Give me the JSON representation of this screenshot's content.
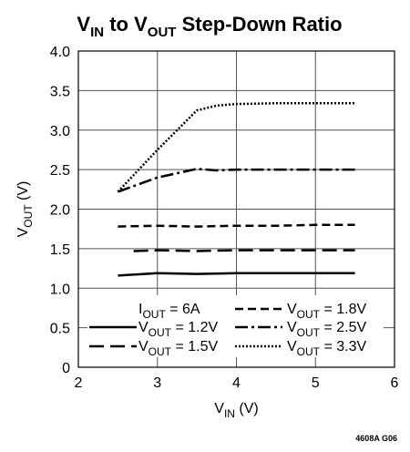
{
  "chart_data": {
    "type": "line",
    "title": {
      "main_a": "V",
      "sub_a": "IN",
      "main_b": " to V",
      "sub_b": "OUT",
      "main_c": " Step-Down Ratio"
    },
    "xlabel": {
      "main": "V",
      "sub": "IN",
      "suffix": " (V)"
    },
    "ylabel": {
      "main": "V",
      "sub": "OUT",
      "suffix": " (V)"
    },
    "xlim": [
      2,
      6
    ],
    "ylim": [
      0,
      4.0
    ],
    "xticks": [
      "2",
      "3",
      "4",
      "5",
      "6"
    ],
    "yticks": [
      "0",
      "0.5",
      "1.0",
      "1.5",
      "2.0",
      "2.5",
      "3.0",
      "3.5",
      "4.0"
    ],
    "grid": true,
    "legend_position": "bottom",
    "legend_header": {
      "main": "I",
      "sub": "OUT",
      "suffix": " = 6A"
    },
    "series": [
      {
        "name": "V_OUT = 1.2V",
        "label": {
          "main": "V",
          "sub": "OUT",
          "suffix": " = 1.2V"
        },
        "dash": "solid",
        "x": [
          2.5,
          3.0,
          3.5,
          4.0,
          4.5,
          5.0,
          5.5
        ],
        "y": [
          1.16,
          1.19,
          1.18,
          1.19,
          1.19,
          1.19,
          1.19
        ]
      },
      {
        "name": "V_OUT = 1.5V",
        "label": {
          "main": "V",
          "sub": "OUT",
          "suffix": " = 1.5V"
        },
        "dash": "longdash",
        "x": [
          2.7,
          3.0,
          3.5,
          4.0,
          4.5,
          5.0,
          5.5
        ],
        "y": [
          1.47,
          1.48,
          1.47,
          1.48,
          1.48,
          1.48,
          1.48
        ]
      },
      {
        "name": "V_OUT = 1.8V",
        "label": {
          "main": "V",
          "sub": "OUT",
          "suffix": " = 1.8V"
        },
        "dash": "dash",
        "x": [
          2.5,
          3.0,
          3.5,
          4.0,
          4.5,
          5.0,
          5.5
        ],
        "y": [
          1.78,
          1.79,
          1.78,
          1.79,
          1.79,
          1.8,
          1.8
        ]
      },
      {
        "name": "V_OUT = 2.5V",
        "label": {
          "main": "V",
          "sub": "OUT",
          "suffix": " = 2.5V"
        },
        "dash": "dashdot",
        "x": [
          2.5,
          3.0,
          3.5,
          3.75,
          4.0,
          4.5,
          5.0,
          5.5
        ],
        "y": [
          2.22,
          2.4,
          2.51,
          2.49,
          2.5,
          2.5,
          2.5,
          2.5
        ]
      },
      {
        "name": "V_OUT = 3.3V",
        "label": {
          "main": "V",
          "sub": "OUT",
          "suffix": " = 3.3V"
        },
        "dash": "dotted",
        "x": [
          2.5,
          3.0,
          3.3,
          3.5,
          3.75,
          4.0,
          4.5,
          5.0,
          5.5
        ],
        "y": [
          2.22,
          2.75,
          3.05,
          3.25,
          3.31,
          3.33,
          3.34,
          3.34,
          3.34
        ]
      }
    ],
    "figure_id": "4608A G06"
  }
}
